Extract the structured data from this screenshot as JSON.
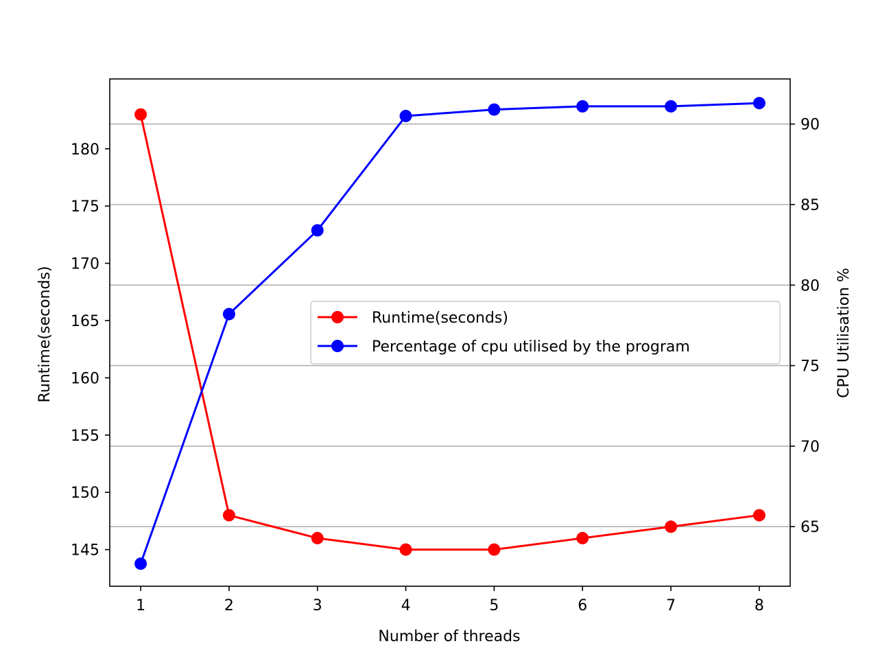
{
  "chart_data": {
    "type": "line",
    "title": "",
    "xlabel": "Number of threads",
    "ylabel": "Runtime(seconds)",
    "y2label": "CPU Utilisation %",
    "x": [
      1,
      2,
      3,
      4,
      5,
      6,
      7,
      8
    ],
    "xticks": [
      "1",
      "2",
      "3",
      "4",
      "5",
      "6",
      "7",
      "8"
    ],
    "xlim": [
      0.65,
      8.35
    ],
    "ylim": [
      141.8,
      186.1
    ],
    "yticks": [
      145,
      150,
      155,
      160,
      165,
      170,
      175,
      180
    ],
    "y2lim": [
      61.3,
      92.8
    ],
    "y2ticks": [
      65,
      70,
      75,
      80,
      85,
      90
    ],
    "grid": "horizontal lines at right-axis ticks",
    "legend_position": "center-right",
    "series": [
      {
        "name": "Runtime(seconds)",
        "axis": "left",
        "color": "#ff0000",
        "marker": "circle",
        "values": [
          183,
          148,
          146,
          145,
          145,
          146,
          147,
          148
        ]
      },
      {
        "name": "Percentage of cpu utilised by the program",
        "axis": "right",
        "color": "#0000ff",
        "marker": "circle",
        "values": [
          62.7,
          78.2,
          83.4,
          90.5,
          90.9,
          91.1,
          91.1,
          91.3
        ]
      }
    ]
  }
}
